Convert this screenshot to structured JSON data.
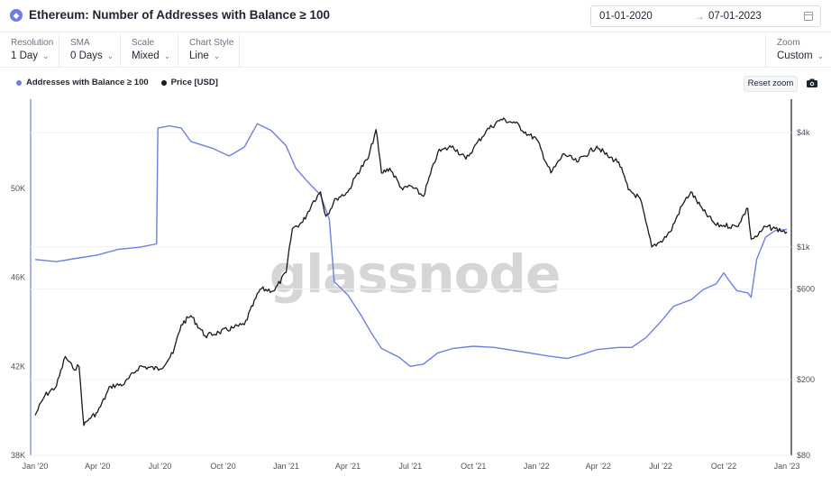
{
  "header": {
    "title": "Ethereum: Number of Addresses with Balance ≥ 100",
    "date_start": "01-01-2020",
    "date_arrow": "→",
    "date_end": "07-01-2023"
  },
  "controls": {
    "resolution": {
      "label": "Resolution",
      "value": "1 Day"
    },
    "sma": {
      "label": "SMA",
      "value": "0 Days"
    },
    "scale": {
      "label": "Scale",
      "value": "Mixed"
    },
    "chart_style": {
      "label": "Chart Style",
      "value": "Line"
    },
    "zoom": {
      "label": "Zoom",
      "value": "Custom"
    }
  },
  "toolbar": {
    "reset_zoom": "Reset zoom"
  },
  "watermark": "glassnode",
  "colors": {
    "addresses": "#6f7fe0",
    "price": "#1a1a1a"
  },
  "chart_data": {
    "type": "line",
    "legend_position": "top-left",
    "x_ticks": [
      "Jan '20",
      "Apr '20",
      "Jul '20",
      "Oct '20",
      "Jan '21",
      "Apr '21",
      "Jul '21",
      "Oct '21",
      "Jan '22",
      "Apr '22",
      "Jul '22",
      "Oct '22",
      "Jan '23"
    ],
    "left_axis": {
      "ticks": [
        "38K",
        "42K",
        "46K",
        "50K"
      ],
      "values": [
        38000,
        42000,
        46000,
        50000
      ],
      "range": [
        38000,
        54000
      ]
    },
    "right_axis": {
      "scale": "log",
      "ticks": [
        "$80",
        "$200",
        "$600",
        "$1k",
        "$4k"
      ],
      "values": [
        80,
        200,
        600,
        1000,
        4000
      ],
      "range": [
        80,
        6000
      ]
    },
    "series": [
      {
        "name": "Addresses with Balance ≥ 100",
        "axis": "left",
        "points": [
          [
            "2020-01-01",
            46800
          ],
          [
            "2020-02-01",
            46700
          ],
          [
            "2020-03-01",
            46850
          ],
          [
            "2020-04-01",
            47000
          ],
          [
            "2020-05-01",
            47250
          ],
          [
            "2020-06-01",
            47350
          ],
          [
            "2020-06-26",
            47500
          ],
          [
            "2020-06-28",
            52700
          ],
          [
            "2020-07-15",
            52800
          ],
          [
            "2020-08-01",
            52700
          ],
          [
            "2020-08-15",
            52100
          ],
          [
            "2020-09-15",
            51800
          ],
          [
            "2020-10-10",
            51450
          ],
          [
            "2020-11-01",
            51850
          ],
          [
            "2020-11-20",
            52900
          ],
          [
            "2020-12-10",
            52600
          ],
          [
            "2021-01-01",
            51900
          ],
          [
            "2021-01-15",
            50900
          ],
          [
            "2021-02-01",
            50300
          ],
          [
            "2021-02-20",
            49700
          ],
          [
            "2021-03-05",
            48600
          ],
          [
            "2021-03-12",
            45800
          ],
          [
            "2021-04-01",
            45200
          ],
          [
            "2021-04-20",
            44300
          ],
          [
            "2021-05-05",
            43500
          ],
          [
            "2021-05-20",
            42800
          ],
          [
            "2021-06-15",
            42400
          ],
          [
            "2021-07-01",
            42000
          ],
          [
            "2021-07-20",
            42100
          ],
          [
            "2021-08-10",
            42600
          ],
          [
            "2021-09-01",
            42800
          ],
          [
            "2021-10-01",
            42900
          ],
          [
            "2021-11-01",
            42850
          ],
          [
            "2021-12-01",
            42700
          ],
          [
            "2022-01-01",
            42550
          ],
          [
            "2022-01-20",
            42450
          ],
          [
            "2022-02-15",
            42350
          ],
          [
            "2022-03-10",
            42550
          ],
          [
            "2022-03-30",
            42750
          ],
          [
            "2022-05-01",
            42850
          ],
          [
            "2022-05-20",
            42850
          ],
          [
            "2022-06-10",
            43300
          ],
          [
            "2022-07-01",
            44000
          ],
          [
            "2022-07-20",
            44700
          ],
          [
            "2022-08-15",
            45000
          ],
          [
            "2022-09-01",
            45450
          ],
          [
            "2022-09-20",
            45700
          ],
          [
            "2022-10-01",
            46200
          ],
          [
            "2022-10-10",
            45800
          ],
          [
            "2022-10-20",
            45400
          ],
          [
            "2022-11-05",
            45300
          ],
          [
            "2022-11-10",
            45100
          ],
          [
            "2022-11-18",
            46800
          ],
          [
            "2022-12-01",
            47800
          ],
          [
            "2022-12-15",
            48100
          ],
          [
            "2023-01-01",
            48150
          ]
        ]
      },
      {
        "name": "Price [USD]",
        "axis": "right",
        "points": [
          [
            "2020-01-01",
            130
          ],
          [
            "2020-01-15",
            165
          ],
          [
            "2020-02-01",
            185
          ],
          [
            "2020-02-14",
            265
          ],
          [
            "2020-02-25",
            230
          ],
          [
            "2020-03-05",
            235
          ],
          [
            "2020-03-12",
            115
          ],
          [
            "2020-03-20",
            125
          ],
          [
            "2020-04-01",
            135
          ],
          [
            "2020-04-20",
            185
          ],
          [
            "2020-05-10",
            190
          ],
          [
            "2020-06-01",
            235
          ],
          [
            "2020-07-01",
            228
          ],
          [
            "2020-07-20",
            275
          ],
          [
            "2020-08-01",
            390
          ],
          [
            "2020-08-15",
            435
          ],
          [
            "2020-09-05",
            340
          ],
          [
            "2020-09-25",
            355
          ],
          [
            "2020-10-15",
            375
          ],
          [
            "2020-11-01",
            390
          ],
          [
            "2020-11-24",
            600
          ],
          [
            "2020-12-15",
            590
          ],
          [
            "2021-01-01",
            735
          ],
          [
            "2021-01-10",
            1250
          ],
          [
            "2021-01-25",
            1350
          ],
          [
            "2021-02-10",
            1750
          ],
          [
            "2021-02-20",
            1950
          ],
          [
            "2021-02-28",
            1450
          ],
          [
            "2021-03-15",
            1800
          ],
          [
            "2021-04-01",
            1950
          ],
          [
            "2021-04-15",
            2450
          ],
          [
            "2021-05-01",
            2950
          ],
          [
            "2021-05-12",
            4150
          ],
          [
            "2021-05-20",
            2450
          ],
          [
            "2021-06-01",
            2600
          ],
          [
            "2021-06-20",
            2000
          ],
          [
            "2021-07-01",
            2100
          ],
          [
            "2021-07-20",
            1850
          ],
          [
            "2021-08-10",
            3150
          ],
          [
            "2021-09-01",
            3400
          ],
          [
            "2021-09-20",
            2900
          ],
          [
            "2021-10-01",
            3300
          ],
          [
            "2021-10-20",
            4100
          ],
          [
            "2021-11-10",
            4700
          ],
          [
            "2021-12-01",
            4500
          ],
          [
            "2021-12-20",
            3900
          ],
          [
            "2022-01-01",
            3700
          ],
          [
            "2022-01-22",
            2450
          ],
          [
            "2022-02-10",
            3100
          ],
          [
            "2022-03-01",
            2800
          ],
          [
            "2022-03-30",
            3400
          ],
          [
            "2022-04-15",
            3000
          ],
          [
            "2022-05-01",
            2800
          ],
          [
            "2022-05-15",
            2000
          ],
          [
            "2022-06-01",
            1800
          ],
          [
            "2022-06-18",
            1000
          ],
          [
            "2022-07-01",
            1070
          ],
          [
            "2022-07-15",
            1200
          ],
          [
            "2022-08-01",
            1650
          ],
          [
            "2022-08-14",
            1950
          ],
          [
            "2022-09-01",
            1550
          ],
          [
            "2022-09-20",
            1300
          ],
          [
            "2022-10-01",
            1300
          ],
          [
            "2022-10-20",
            1280
          ],
          [
            "2022-11-05",
            1600
          ],
          [
            "2022-11-10",
            1100
          ],
          [
            "2022-11-20",
            1150
          ],
          [
            "2022-12-01",
            1280
          ],
          [
            "2022-12-15",
            1250
          ],
          [
            "2023-01-01",
            1200
          ]
        ]
      }
    ]
  }
}
